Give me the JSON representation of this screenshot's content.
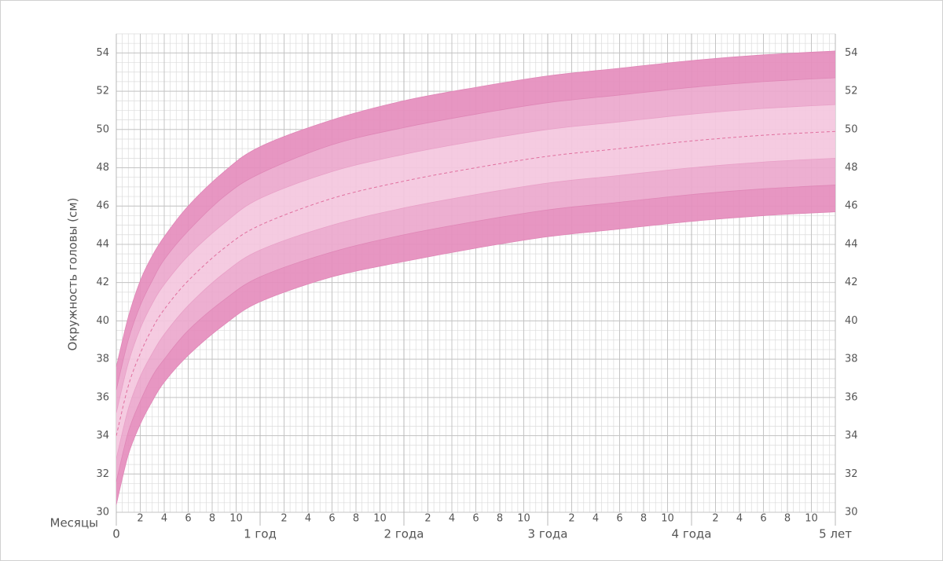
{
  "chart_data": {
    "type": "area",
    "y_label": "Окружность головы (см)",
    "x_label": "Месяцы",
    "xlim": [
      0,
      60
    ],
    "ylim": [
      30,
      55
    ],
    "yticks": [
      30,
      32,
      34,
      36,
      38,
      40,
      42,
      44,
      46,
      48,
      50,
      52,
      54
    ],
    "xticks": [
      0,
      {
        "value": 12,
        "label": "1 год"
      },
      {
        "value": 24,
        "label": "2 года"
      },
      {
        "value": 36,
        "label": "3 года"
      },
      {
        "value": 48,
        "label": "4 года"
      },
      {
        "value": 60,
        "label": "5 лет"
      }
    ],
    "xticks_months": [
      2,
      4,
      6,
      8,
      10,
      {
        "value": 14,
        "label": "2"
      },
      {
        "value": 16,
        "label": "4"
      },
      {
        "value": 18,
        "label": "6"
      },
      {
        "value": 20,
        "label": "8"
      },
      {
        "value": 22,
        "label": "10"
      },
      {
        "value": 26,
        "label": "2"
      },
      {
        "value": 28,
        "label": "4"
      },
      {
        "value": 30,
        "label": "6"
      },
      {
        "value": 32,
        "label": "8"
      },
      {
        "value": 34,
        "label": "10"
      },
      {
        "value": 38,
        "label": "2"
      },
      {
        "value": 40,
        "label": "4"
      },
      {
        "value": 42,
        "label": "6"
      },
      {
        "value": 44,
        "label": "8"
      },
      {
        "value": 46,
        "label": "10"
      },
      {
        "value": 50,
        "label": "2"
      },
      {
        "value": 52,
        "label": "4"
      },
      {
        "value": 54,
        "label": "6"
      },
      {
        "value": 56,
        "label": "8"
      },
      {
        "value": 58,
        "label": "10"
      }
    ],
    "grid": true,
    "x": [
      0,
      1,
      2,
      3,
      4,
      6,
      9,
      12,
      18,
      24,
      30,
      36,
      42,
      48,
      54,
      60
    ],
    "band_colors": [
      "#e58dbd",
      "#eba8cd",
      "#f4c7de",
      "#f4c7de",
      "#eba8cd",
      "#e58dbd"
    ],
    "series": [
      {
        "color": "#df86b6",
        "values": [
          30.4,
          33.0,
          34.6,
          35.8,
          36.8,
          38.2,
          39.8,
          41.0,
          42.3,
          43.1,
          43.8,
          44.4,
          44.8,
          45.2,
          45.5,
          45.7
        ]
      },
      {
        "color": "#df86b6",
        "values": [
          31.6,
          34.2,
          35.8,
          37.1,
          38.0,
          39.5,
          41.1,
          42.3,
          43.6,
          44.5,
          45.2,
          45.8,
          46.2,
          46.6,
          46.9,
          47.1
        ]
      },
      {
        "color": "#e8a0c7",
        "values": [
          32.8,
          35.4,
          37.1,
          38.3,
          39.3,
          40.8,
          42.5,
          43.7,
          45.0,
          45.9,
          46.6,
          47.2,
          47.6,
          48.0,
          48.3,
          48.5
        ]
      },
      {
        "color": "#e0709f",
        "dashed": true,
        "values": [
          34.0,
          36.6,
          38.3,
          39.6,
          40.6,
          42.1,
          43.8,
          45.0,
          46.4,
          47.3,
          48.0,
          48.6,
          49.0,
          49.4,
          49.7,
          49.9
        ]
      },
      {
        "color": "#e8a0c7",
        "values": [
          35.2,
          37.8,
          39.6,
          40.9,
          41.9,
          43.4,
          45.1,
          46.4,
          47.8,
          48.7,
          49.4,
          50.0,
          50.4,
          50.8,
          51.1,
          51.3
        ]
      },
      {
        "color": "#df86b6",
        "values": [
          36.4,
          39.0,
          40.8,
          42.1,
          43.2,
          44.7,
          46.5,
          47.7,
          49.2,
          50.1,
          50.8,
          51.4,
          51.8,
          52.2,
          52.5,
          52.7
        ]
      },
      {
        "color": "#df86b6",
        "values": [
          37.6,
          40.2,
          42.1,
          43.4,
          44.4,
          46.0,
          47.8,
          49.1,
          50.5,
          51.5,
          52.2,
          52.8,
          53.2,
          53.6,
          53.9,
          54.1
        ]
      }
    ]
  }
}
